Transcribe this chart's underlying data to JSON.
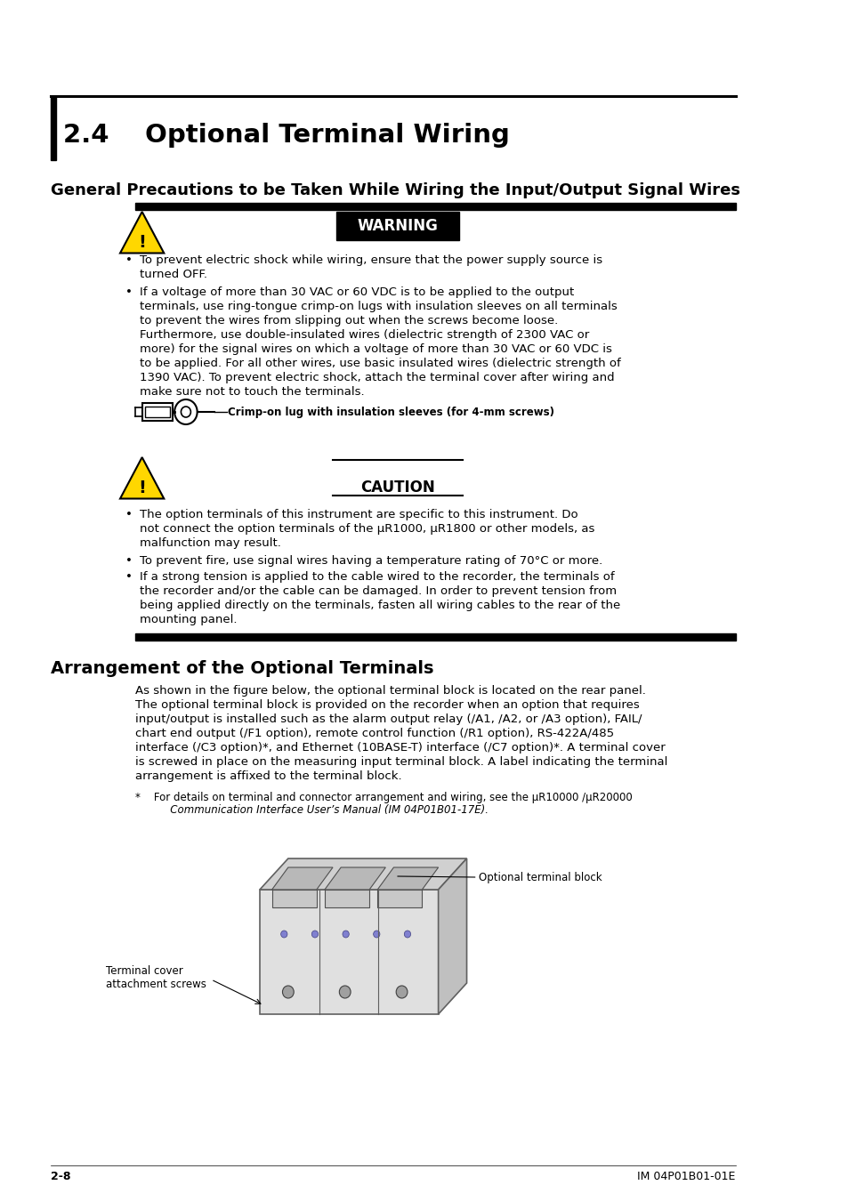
{
  "page_bg": "#ffffff",
  "section_title": "2.4    Optional Terminal Wiring",
  "section_title_size": 20,
  "subsection1_title": "General Precautions to be Taken While Wiring the Input/Output Signal Wires",
  "subsection2_title": "Arrangement of the Optional Terminals",
  "warning_title": "WARNING",
  "caution_title": "CAUTION",
  "crimp_label": "Crimp-on lug with insulation sleeves (for 4-mm screws)",
  "arrangement_para_line1": "As shown in the figure below, the optional terminal block is located on the rear panel.",
  "arrangement_para_line2": "The optional terminal block is provided on the recorder when an option that requires",
  "arrangement_para_line3": "input/output is installed such as the alarm output relay (/A1, /A2, or /A3 option), FAIL/",
  "arrangement_para_line4": "chart end output (/F1 option), remote control function (/R1 option), RS-422A/485",
  "arrangement_para_line5": "interface (/C3 option)*, and Ethernet (10BASE-T) interface (/C7 option)*. A terminal cover",
  "arrangement_para_line6": "is screwed in place on the measuring input terminal block. A label indicating the terminal",
  "arrangement_para_line7": "arrangement is affixed to the terminal block.",
  "footnote1": "*    For details on terminal and connector arrangement and wiring, see the μR10000 /μR20000",
  "footnote2": "       Communication Interface User’s Manual (IM 04P01B01-17E).",
  "optional_block_label": "Optional terminal block",
  "terminal_cover_label": "Terminal cover\nattachment screws",
  "footer_left": "2-8",
  "footer_right": "IM 04P01B01-01E",
  "yellow_color": "#FFD700",
  "black_color": "#000000",
  "warn_b1": "To prevent electric shock while wiring, ensure that the power supply source is",
  "warn_b1b": "turned OFF.",
  "warn_b2": "If a voltage of more than 30 VAC or 60 VDC is to be applied to the output",
  "warn_b2b": "terminals, use ring-tongue crimp-on lugs with insulation sleeves on all terminals",
  "warn_b2c": "to prevent the wires from slipping out when the screws become loose.",
  "warn_b2d": "Furthermore, use double-insulated wires (dielectric strength of 2300 VAC or",
  "warn_b2e": "more) for the signal wires on which a voltage of more than 30 VAC or 60 VDC is",
  "warn_b2f": "to be applied. For all other wires, use basic insulated wires (dielectric strength of",
  "warn_b2g": "1390 VAC). To prevent electric shock, attach the terminal cover after wiring and",
  "warn_b2h": "make sure not to touch the terminals.",
  "caut_b1": "The option terminals of this instrument are specific to this instrument. Do",
  "caut_b1b": "not connect the option terminals of the μR1000, μR1800 or other models, as",
  "caut_b1c": "malfunction may result.",
  "caut_b2": "To prevent fire, use signal wires having a temperature rating of 70°C or more.",
  "caut_b3": "If a strong tension is applied to the cable wired to the recorder, the terminals of",
  "caut_b3b": "the recorder and/or the cable can be damaged. In order to prevent tension from",
  "caut_b3c": "being applied directly on the terminals, fasten all wiring cables to the rear of the",
  "caut_b3d": "mounting panel."
}
